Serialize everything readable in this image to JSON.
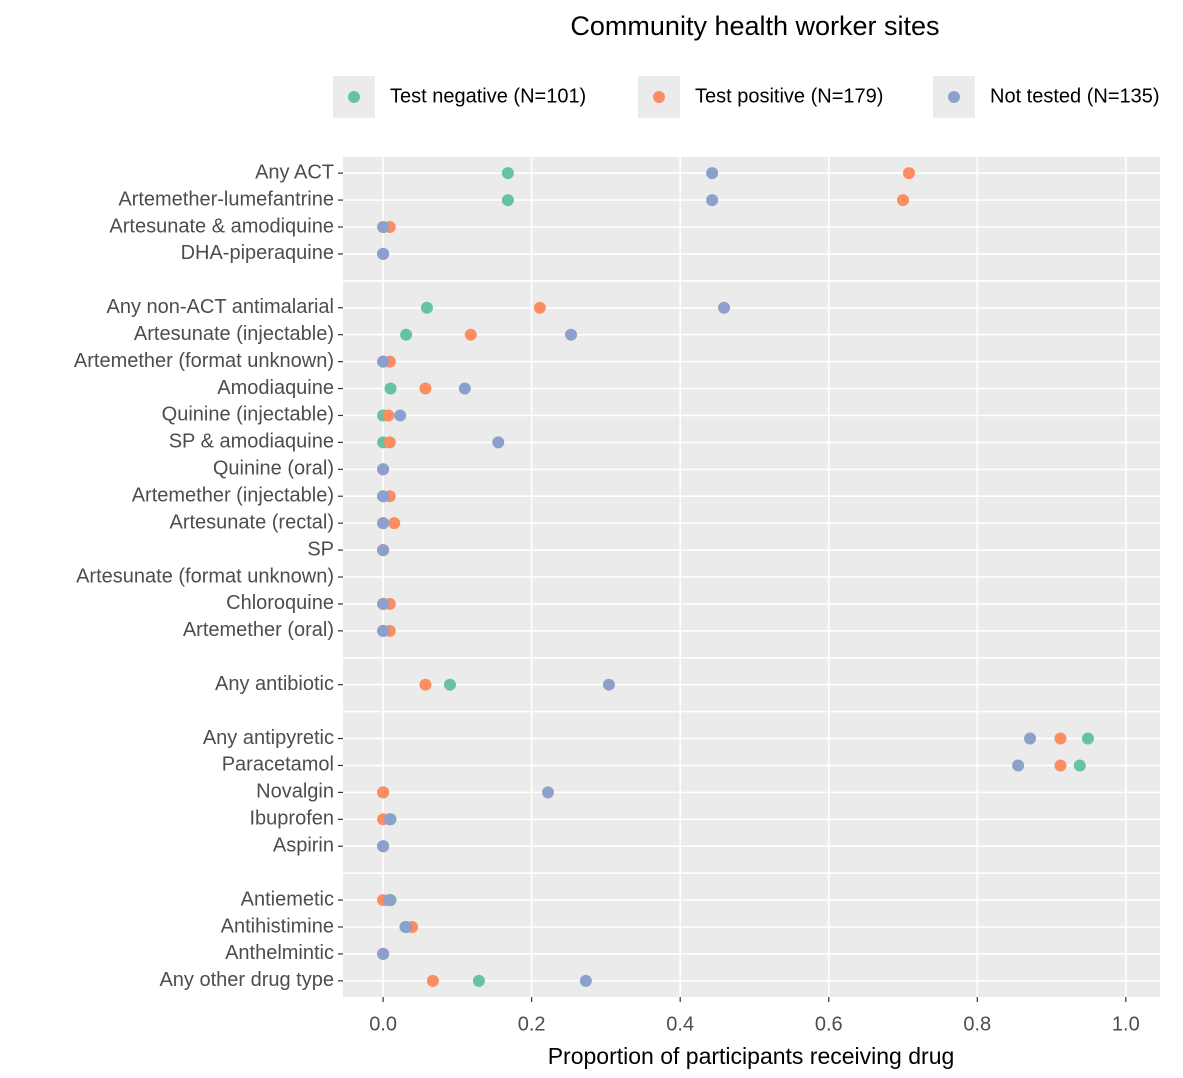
{
  "chart_data": {
    "type": "dot",
    "title": "Community health worker sites",
    "xlabel": "Proportion of participants receiving drug",
    "categories": [
      "Any ACT",
      "Artemether-lumefantrine",
      "Artesunate & amodiquine",
      "DHA-piperaquine",
      null,
      "Any non-ACT antimalarial",
      "Artesunate (injectable)",
      "Artemether (format unknown)",
      "Amodiaquine",
      "Quinine (injectable)",
      "SP & amodiaquine",
      "Quinine (oral)",
      "Artemether (injectable)",
      "Artesunate (rectal)",
      "SP",
      "Artesunate (format unknown)",
      "Chloroquine",
      "Artemether (oral)",
      null,
      "Any antibiotic",
      null,
      "Any antipyretic",
      "Paracetamol",
      "Novalgin",
      "Ibuprofen",
      "Aspirin",
      null,
      "Antiemetic",
      "Antihistimine",
      "Anthelmintic",
      "Any other drug type"
    ],
    "series": [
      {
        "name": "Test negative (N=101)",
        "color": "#66c2a5",
        "values": [
          0.168,
          0.168,
          0,
          0,
          null,
          0.059,
          0.031,
          0,
          0.01,
          0,
          0,
          0,
          0,
          0,
          0,
          null,
          0,
          0,
          null,
          0.09,
          null,
          0.949,
          0.938,
          0,
          0.01,
          0,
          null,
          0.01,
          0.03,
          0,
          0.129
        ]
      },
      {
        "name": "Test positive (N=179)",
        "color": "#fc8d62",
        "values": [
          0.708,
          0.7,
          0.009,
          0,
          null,
          0.211,
          0.118,
          0.009,
          0.057,
          0.007,
          0.009,
          0,
          0.009,
          0.015,
          0,
          null,
          0.009,
          0.009,
          null,
          0.057,
          null,
          0.912,
          0.912,
          0,
          0,
          0,
          null,
          0,
          0.039,
          0,
          0.067
        ]
      },
      {
        "name": "Not tested (N=135)",
        "color": "#8da0cb",
        "values": [
          0.443,
          0.443,
          0,
          0,
          null,
          0.459,
          0.253,
          0,
          0.11,
          0.023,
          0.155,
          0,
          0,
          0,
          0,
          null,
          0,
          0,
          null,
          0.304,
          null,
          0.871,
          0.855,
          0.222,
          0.009,
          0,
          null,
          0.008,
          0.031,
          0,
          0.273
        ]
      }
    ],
    "xlim": [
      -0.054,
      1.046
    ],
    "xticks": [
      {
        "value": 0,
        "label": "0.0"
      },
      0.2,
      0.4,
      0.6,
      0.8,
      {
        "value": 1,
        "label": "1.0"
      }
    ],
    "grid": true
  }
}
